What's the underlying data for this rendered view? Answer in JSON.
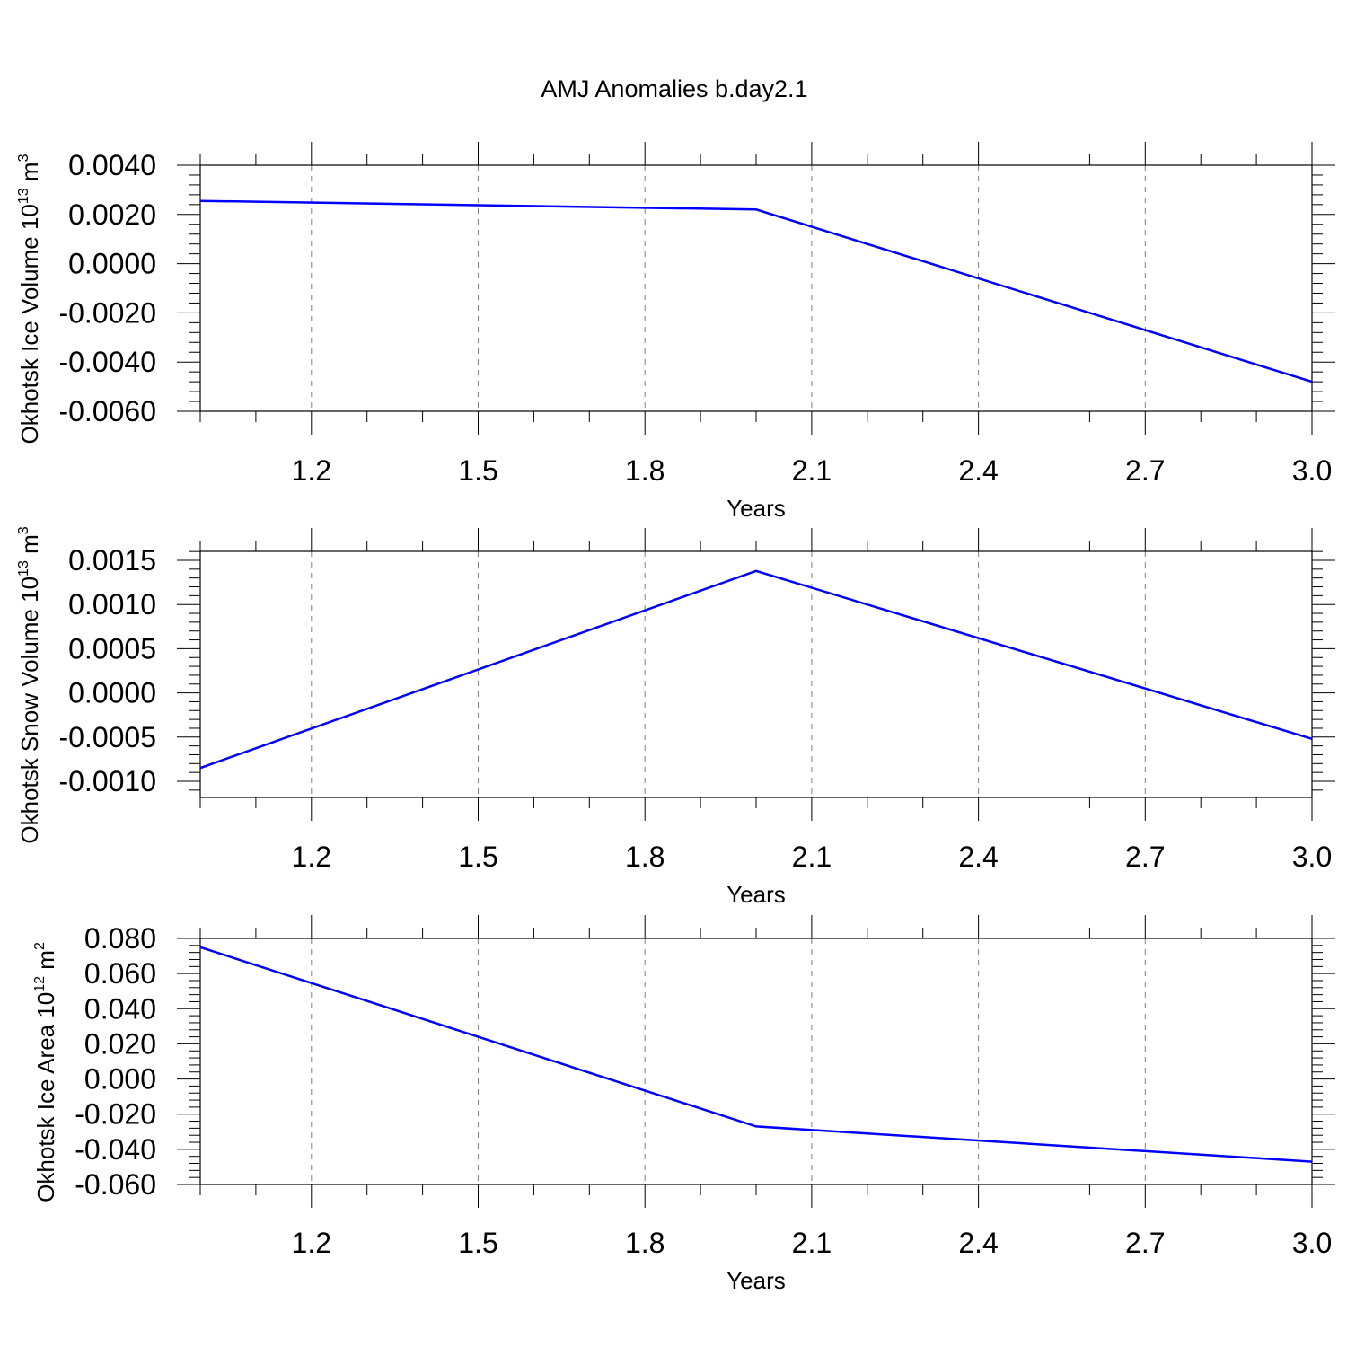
{
  "title": "AMJ Anomalies b.day2.1",
  "colors": {
    "series": "#0000ff",
    "axes": "#000000",
    "grid": "#7f7f7f"
  },
  "chart_data": [
    {
      "type": "line",
      "title": "AMJ Anomalies b.day2.1",
      "xlabel": "Years",
      "ylabel": {
        "main": "Okhotsk Ice Volume 10",
        "sup": "13",
        "unit": " m",
        "unit_sup": "3"
      },
      "x": [
        1,
        2,
        3
      ],
      "xlim": [
        1,
        3
      ],
      "ylim": [
        -0.006,
        0.005
      ],
      "xticks": [
        "1.2",
        "1.5",
        "1.8",
        "2.1",
        "2.4",
        "2.7",
        "3.0"
      ],
      "yticks": [
        "0.0040",
        "0.0020",
        "0.0000",
        "-0.0020",
        "-0.0040",
        "-0.0060"
      ],
      "series": [
        {
          "values": [
            0.00255,
            0.0022,
            -0.0048
          ]
        }
      ],
      "grid": "x-dashed"
    },
    {
      "type": "line",
      "xlabel": "Years",
      "ylabel": {
        "main": "Okhotsk Snow Volume 10",
        "sup": "13",
        "unit": " m",
        "unit_sup": "3"
      },
      "x": [
        1,
        2,
        3
      ],
      "xlim": [
        1,
        3
      ],
      "ylim": [
        -0.0012,
        0.0016
      ],
      "xticks": [
        "1.2",
        "1.5",
        "1.8",
        "2.1",
        "2.4",
        "2.7",
        "3.0"
      ],
      "yticks": [
        "0.0015",
        "0.0010",
        "0.0005",
        "0.0000",
        "-0.0005",
        "-0.0010"
      ],
      "series": [
        {
          "values": [
            -0.00085,
            0.00138,
            -0.00052
          ]
        }
      ],
      "grid": "x-dashed"
    },
    {
      "type": "line",
      "xlabel": "Years",
      "ylabel": {
        "main": "Okhotsk Ice Area 10",
        "sup": "12",
        "unit": " m",
        "unit_sup": "2"
      },
      "x": [
        1,
        2,
        3
      ],
      "xlim": [
        1,
        3
      ],
      "ylim": [
        -0.06,
        0.08
      ],
      "xticks": [
        "1.2",
        "1.5",
        "1.8",
        "2.1",
        "2.4",
        "2.7",
        "3.0"
      ],
      "yticks": [
        "0.080",
        "0.060",
        "0.040",
        "0.020",
        "0.000",
        "-0.020",
        "-0.040",
        "-0.060"
      ],
      "series": [
        {
          "values": [
            0.075,
            -0.027,
            -0.047
          ]
        }
      ],
      "grid": "x-dashed"
    }
  ]
}
